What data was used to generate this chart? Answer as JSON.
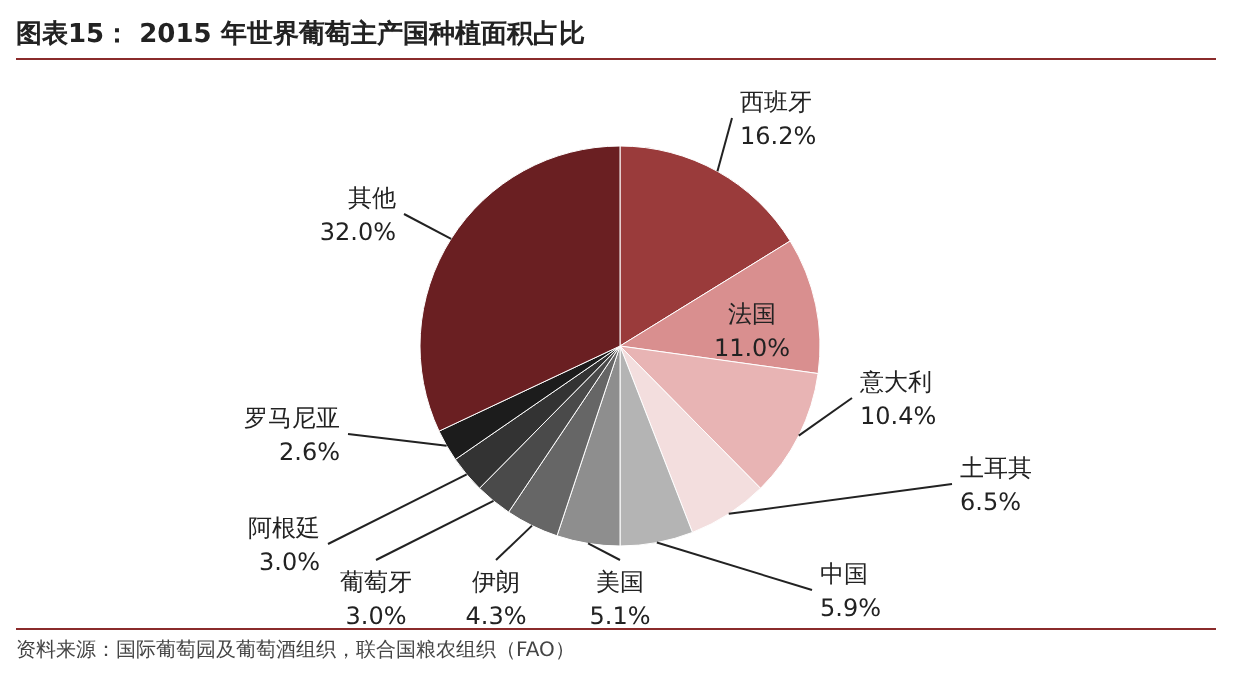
{
  "chart_data": {
    "type": "pie",
    "title": "图表15：  2015 年世界葡萄主产国种植面积占比",
    "categories": [
      "西班牙",
      "法国",
      "意大利",
      "土耳其",
      "中国",
      "美国",
      "伊朗",
      "葡萄牙",
      "阿根廷",
      "罗马尼亚",
      "其他"
    ],
    "values": [
      16.2,
      11.0,
      10.4,
      6.5,
      5.9,
      5.1,
      4.3,
      3.0,
      3.0,
      2.6,
      32.0
    ],
    "value_labels": [
      "16.2%",
      "11.0%",
      "10.4%",
      "6.5%",
      "5.9%",
      "5.1%",
      "4.3%",
      "3.0%",
      "3.0%",
      "2.6%",
      "32.0%"
    ],
    "colors": [
      "#9a3b3b",
      "#d98f8f",
      "#e8b4b4",
      "#f3dede",
      "#b4b4b4",
      "#8e8e8e",
      "#666666",
      "#4a4a4a",
      "#333333",
      "#1c1c1c",
      "#6a1f22"
    ],
    "annotations": [
      "资料来源：国际葡萄园及葡萄酒组织，联合国粮农组织（FAO）"
    ]
  }
}
